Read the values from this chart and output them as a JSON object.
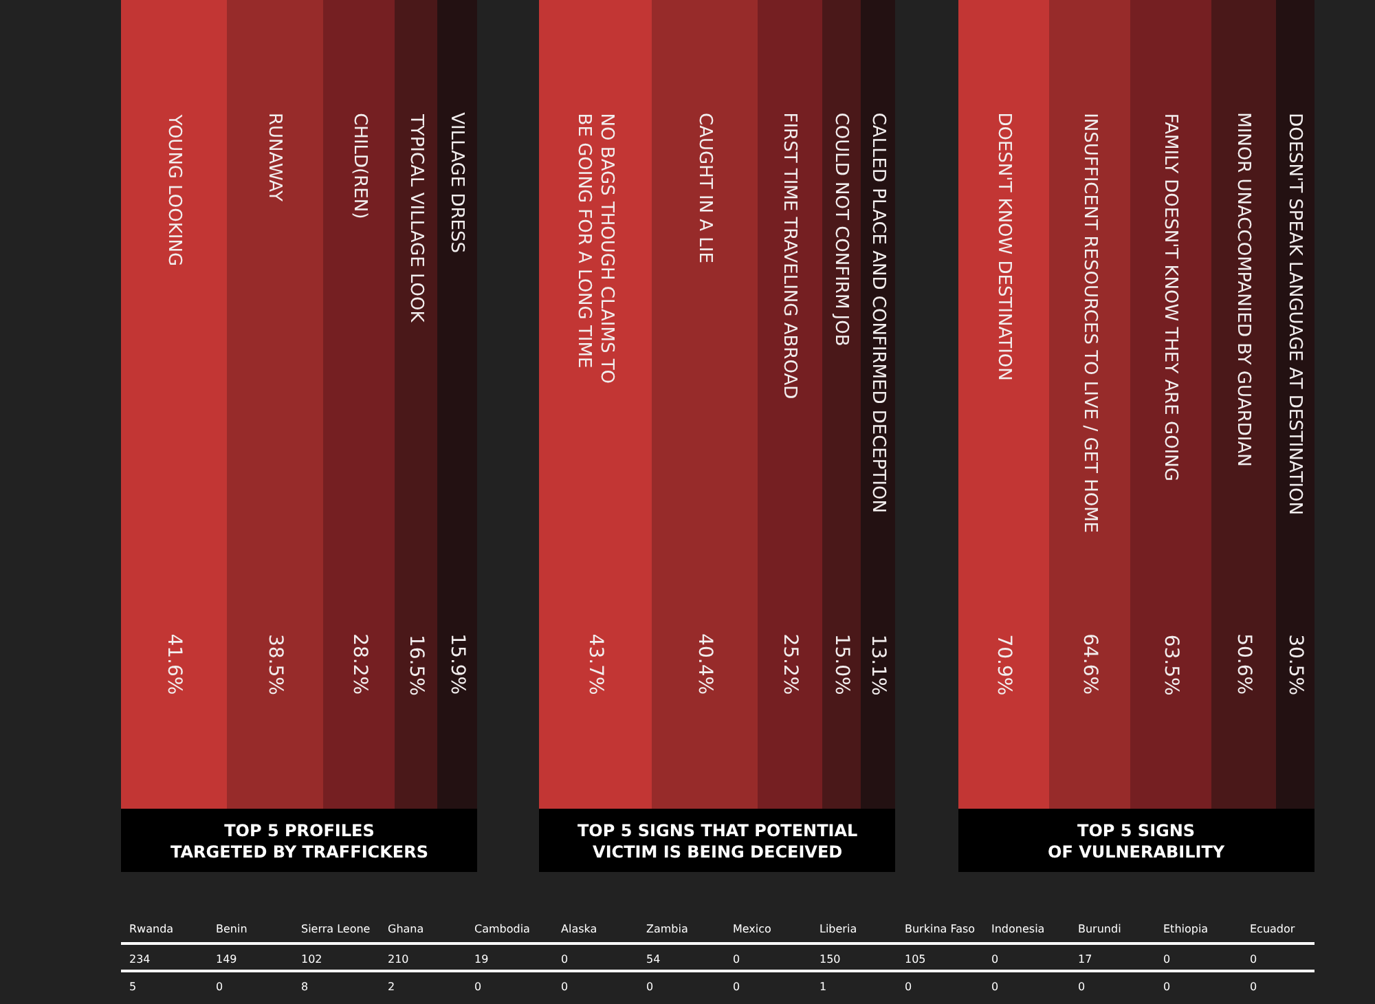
{
  "chart_data": [
    {
      "type": "other",
      "title": "TOP 5 PROFILES\nTARGETED BY TRAFFICKERS",
      "categories": [
        "YOUNG LOOKING",
        "RUNAWAY",
        "CHILD(REN)",
        "TYPICAL VILLAGE LOOK",
        "VILLAGE DRESS"
      ],
      "values": [
        41.6,
        38.5,
        28.2,
        16.5,
        15.9
      ],
      "value_labels": [
        "41.6%",
        "38.5%",
        "28.2%",
        "16.5%",
        "15.9%"
      ],
      "colors": [
        "#c23634",
        "#972b2a",
        "#751f22",
        "#4a1819",
        "#231112"
      ]
    },
    {
      "type": "other",
      "title": "TOP 5 SIGNS THAT POTENTIAL\nVICTIM IS BEING DECEIVED",
      "categories": [
        "NO BAGS THOUGH CLAIMS TO\nBE GOING FOR A LONG TIME",
        "CAUGHT IN A LIE",
        "FIRST TIME TRAVELING ABROAD",
        "COULD NOT CONFIRM JOB",
        "CALLED PLACE AND CONFIRMED DECEPTION"
      ],
      "values": [
        43.7,
        40.4,
        25.2,
        15.0,
        13.1
      ],
      "value_labels": [
        "43.7%",
        "40.4%",
        "25.2%",
        "15.0%",
        "13.1%"
      ],
      "colors": [
        "#c23634",
        "#972b2a",
        "#751f22",
        "#4a1819",
        "#231112"
      ]
    },
    {
      "type": "other",
      "title": "TOP 5 SIGNS\nOF VULNERABILITY",
      "categories": [
        "DOESN'T KNOW DESTINATION",
        "INSUFFICENT RESOURCES TO LIVE / GET HOME",
        "FAMILY DOESN'T KNOW THEY ARE GOING",
        "MINOR UNACCOMPANIED BY GUARDIAN",
        "DOESN'T SPEAK LANGUAGE AT DESTINATION"
      ],
      "values": [
        70.9,
        64.6,
        63.5,
        50.6,
        30.5
      ],
      "value_labels": [
        "70.9%",
        "64.6%",
        "63.5%",
        "50.6%",
        "30.5%"
      ],
      "colors": [
        "#c23634",
        "#972b2a",
        "#751f22",
        "#4a1819",
        "#231112"
      ]
    },
    {
      "type": "other",
      "data_labels": true,
      "categories": [
        "Rwanda",
        "Benin",
        "Sierra Leone",
        "Ghana",
        "Cambodia",
        "Alaska",
        "Zambia",
        "Mexico",
        "Liberia",
        "Burkina Faso",
        "Indonesia",
        "Burundi",
        "Ethiopia",
        "Ecuador"
      ],
      "series": [
        {
          "values": [
            234,
            149,
            102,
            210,
            19,
            0,
            54,
            0,
            150,
            105,
            0,
            17,
            0,
            0
          ]
        },
        {
          "values": [
            5,
            0,
            8,
            2,
            0,
            0,
            0,
            0,
            1,
            0,
            0,
            0,
            0,
            0
          ]
        }
      ]
    }
  ]
}
